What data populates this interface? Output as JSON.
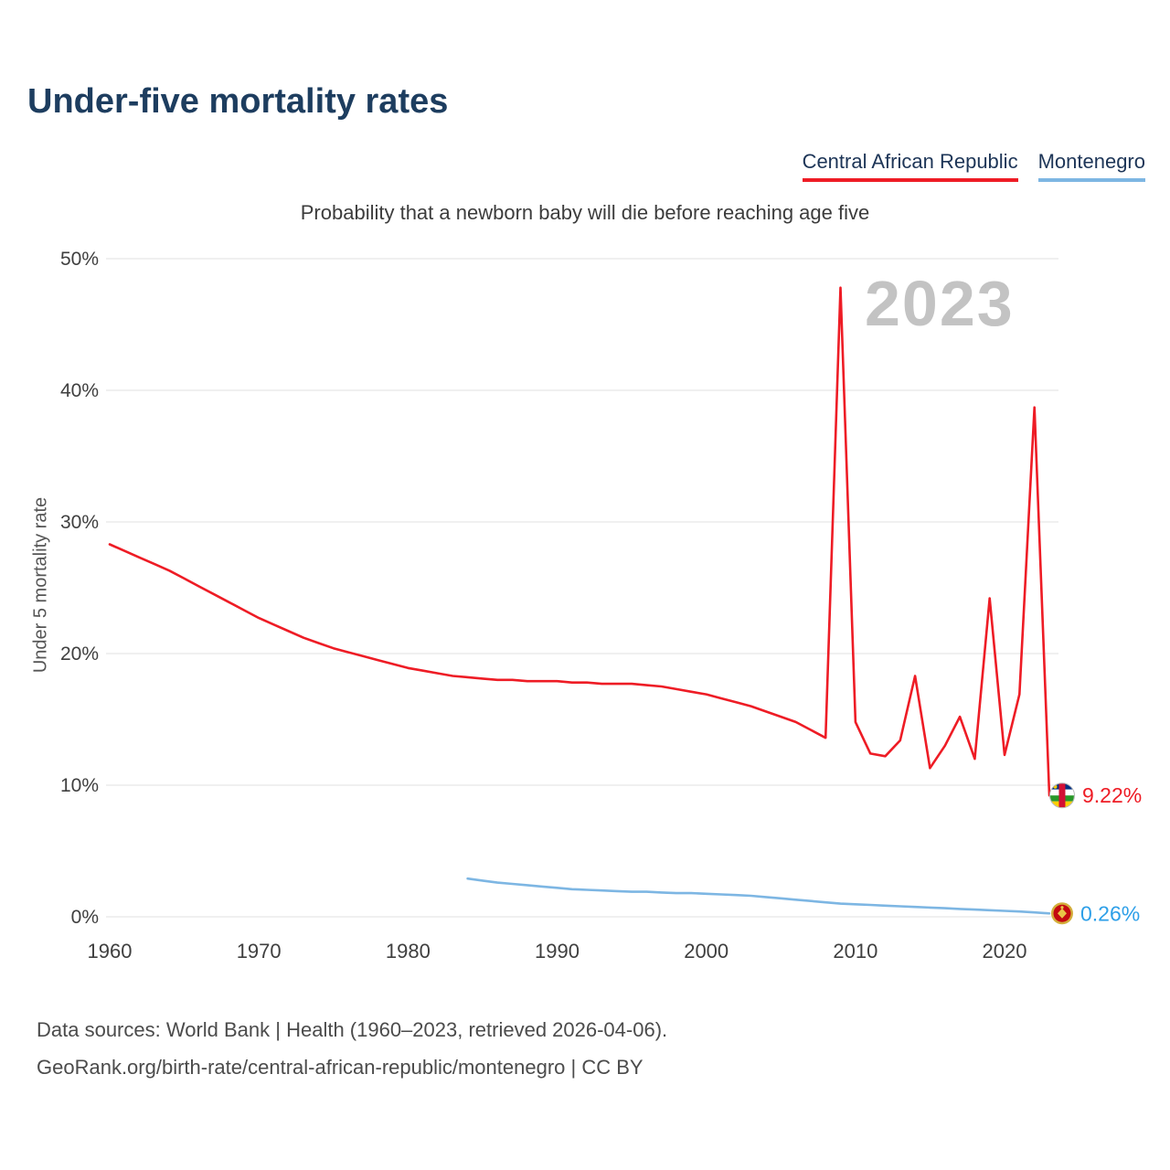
{
  "page": {
    "title": "Under-five mortality rates",
    "subtitle": "Probability that a newborn baby will die before reaching age five",
    "watermark": "2023",
    "footer_line1": "Data sources: World Bank | Health (1960–2023, retrieved 2026-04-06).",
    "footer_line2": "GeoRank.org/birth-rate/central-african-republic/montenegro | CC BY"
  },
  "legend": [
    {
      "label": "Central African Republic",
      "color": "#ee1c25"
    },
    {
      "label": "Montenegro",
      "color": "#7db6e3"
    }
  ],
  "flags": {
    "central_african_republic": {
      "icon": "car-flag-icon",
      "stripe_blue": "#003082",
      "stripe_white": "#ffffff",
      "stripe_green": "#289728",
      "stripe_yellow": "#ffce00",
      "vertical_red": "#d21034",
      "star": "#ffce00"
    },
    "montenegro": {
      "icon": "montenegro-flag-icon",
      "ring": "#d3ae3b",
      "field": "#c40a10",
      "emblem": "#e8c547"
    }
  },
  "chart_data": {
    "type": "line",
    "title": "Under-five mortality rates",
    "subtitle": "Probability that a newborn baby will die before reaching age five",
    "xlabel": "",
    "ylabel": "Under 5 mortality rate",
    "x_ticks": [
      1960,
      1970,
      1980,
      1990,
      2000,
      2010,
      2020
    ],
    "y_ticks": [
      "0%",
      "10%",
      "20%",
      "30%",
      "40%",
      "50%"
    ],
    "xlim": [
      1960,
      2023
    ],
    "ylim": [
      0,
      50
    ],
    "grid": "horizontal",
    "legend_position": "top-right",
    "series": [
      {
        "id": "central-african-republic",
        "name": "Central African Republic",
        "color": "#ee1c25",
        "end_label": "9.22%",
        "end_label_color": "#ee1c25",
        "start_year": 1960,
        "values": [
          28.3,
          27.8,
          27.3,
          26.8,
          26.3,
          25.7,
          25.1,
          24.5,
          23.9,
          23.3,
          22.7,
          22.2,
          21.7,
          21.2,
          20.8,
          20.4,
          20.1,
          19.8,
          19.5,
          19.2,
          18.9,
          18.7,
          18.5,
          18.3,
          18.2,
          18.1,
          18.0,
          18.0,
          17.9,
          17.9,
          17.9,
          17.8,
          17.8,
          17.7,
          17.7,
          17.7,
          17.6,
          17.5,
          17.3,
          17.1,
          16.9,
          16.6,
          16.3,
          16.0,
          15.6,
          15.2,
          14.8,
          14.2,
          13.6,
          47.8,
          14.8,
          12.4,
          12.2,
          13.4,
          18.3,
          11.3,
          13.0,
          15.2,
          12.0,
          24.2,
          12.3,
          16.9,
          38.7,
          9.22
        ]
      },
      {
        "id": "montenegro",
        "name": "Montenegro",
        "color": "#7db6e3",
        "end_label": "0.26%",
        "end_label_color": "#2d9fe8",
        "start_year": 1984,
        "values": [
          2.9,
          2.75,
          2.6,
          2.5,
          2.4,
          2.3,
          2.2,
          2.1,
          2.05,
          2.0,
          1.95,
          1.9,
          1.9,
          1.85,
          1.8,
          1.8,
          1.75,
          1.7,
          1.65,
          1.6,
          1.5,
          1.4,
          1.3,
          1.2,
          1.1,
          1.0,
          0.95,
          0.9,
          0.85,
          0.8,
          0.75,
          0.7,
          0.65,
          0.6,
          0.55,
          0.5,
          0.45,
          0.4,
          0.33,
          0.26
        ]
      }
    ]
  }
}
